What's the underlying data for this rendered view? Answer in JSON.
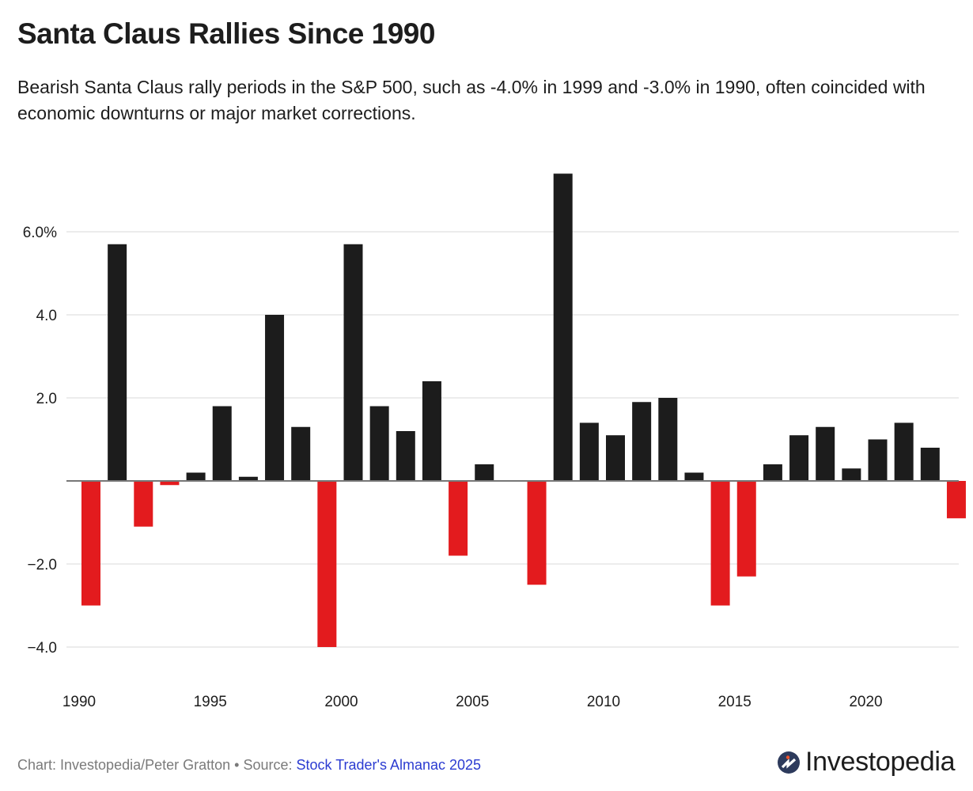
{
  "header": {
    "title": "Santa Claus Rallies Since 1990",
    "subtitle": "Bearish Santa Claus rally periods in the S&P 500, such as -4.0% in 1999 and -3.0% in 1990, often coincided with economic downturns or major market corrections."
  },
  "footer": {
    "credit": "Chart: Investopedia/Peter Gratton • Source: ",
    "source_link": "Stock Trader's Almanac 2025",
    "brand": "Investopedia"
  },
  "colors": {
    "positive": "#1c1c1c",
    "negative": "#e31b1e",
    "grid": "#e6e6e6",
    "baseline": "#777777",
    "link": "#2b3bd1",
    "logo_circle": "#2d3a5c",
    "logo_dot": "#f0532a"
  },
  "chart_data": {
    "type": "bar",
    "title": "Santa Claus Rallies Since 1990",
    "xlabel": "",
    "ylabel": "",
    "x": [
      1990,
      1991,
      1992,
      1993,
      1994,
      1995,
      1996,
      1997,
      1998,
      1999,
      2000,
      2001,
      2002,
      2003,
      2004,
      2005,
      2006,
      2007,
      2008,
      2009,
      2010,
      2011,
      2012,
      2013,
      2014,
      2015,
      2016,
      2017,
      2018,
      2019,
      2020,
      2021,
      2022,
      2023
    ],
    "values": [
      -3.0,
      5.7,
      -1.1,
      -0.1,
      0.2,
      1.8,
      0.1,
      4.0,
      1.3,
      -4.0,
      5.7,
      1.8,
      1.2,
      2.4,
      -1.8,
      0.4,
      0.0,
      -2.5,
      7.4,
      1.4,
      1.1,
      1.9,
      2.0,
      0.2,
      -3.0,
      -2.3,
      0.4,
      1.1,
      1.3,
      0.3,
      1.0,
      1.4,
      0.8,
      -0.9
    ],
    "ylim": [
      -4.0,
      7.4
    ],
    "yticks": [
      {
        "value": 6,
        "label": "6.0%"
      },
      {
        "value": 4,
        "label": "4.0"
      },
      {
        "value": 2,
        "label": "2.0"
      },
      {
        "value": -2,
        "label": "−2.0"
      },
      {
        "value": -4,
        "label": "−4.0"
      }
    ],
    "xticks": [
      {
        "value": 1990,
        "label": "1990"
      },
      {
        "value": 1995,
        "label": "1995"
      },
      {
        "value": 2000,
        "label": "2000"
      },
      {
        "value": 2005,
        "label": "2005"
      },
      {
        "value": 2010,
        "label": "2010"
      },
      {
        "value": 2015,
        "label": "2015"
      },
      {
        "value": 2020,
        "label": "2020"
      }
    ],
    "grid": true,
    "legend": "none",
    "color_rule": "positive values black, negative values red"
  }
}
